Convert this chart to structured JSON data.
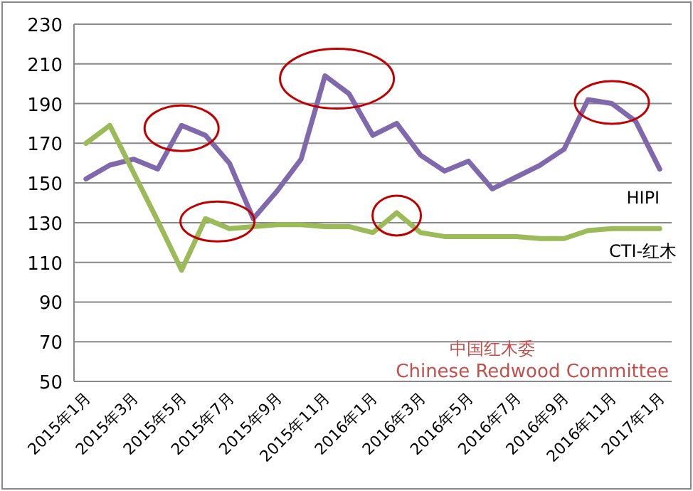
{
  "chart_data": {
    "type": "line",
    "categories": [
      "2015年1月",
      null,
      "2015年3月",
      null,
      "2015年5月",
      null,
      "2015年7月",
      null,
      "2015年9月",
      null,
      "2015年11月",
      null,
      "2016年1月",
      null,
      "2016年3月",
      null,
      "2016年5月",
      null,
      "2016年7月",
      null,
      "2016年9月",
      null,
      "2016年11月",
      null,
      "2017年1月"
    ],
    "series": [
      {
        "name": "HIPI",
        "color": "#7f68ab",
        "values": [
          152,
          159,
          162,
          157,
          179,
          174,
          160,
          132,
          146,
          162,
          204,
          195,
          174,
          180,
          164,
          156,
          161,
          147,
          153,
          159,
          167,
          192,
          190,
          181,
          157
        ]
      },
      {
        "name": "CTI-红木",
        "color": "#9bbb59",
        "values": [
          170,
          179,
          155,
          131,
          106,
          132,
          127,
          128,
          129,
          129,
          128,
          128,
          125,
          135,
          125,
          123,
          123,
          123,
          123,
          122,
          122,
          126,
          127,
          127,
          127
        ]
      }
    ],
    "ylim": [
      50,
      230
    ],
    "yticks": [
      50,
      70,
      90,
      110,
      130,
      150,
      170,
      190,
      210,
      230
    ],
    "grid": "y",
    "annotations": [
      "中国红木委",
      "Chinese Redwood Committee"
    ]
  }
}
